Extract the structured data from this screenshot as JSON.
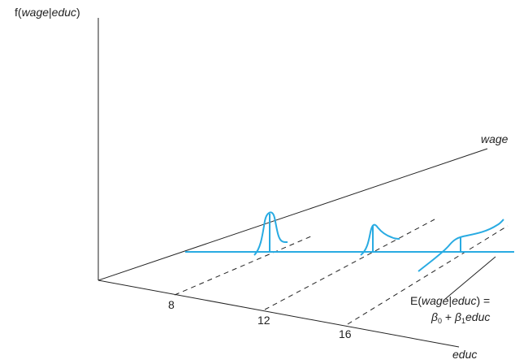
{
  "labels": {
    "y_axis_fn": "f(",
    "y_axis_arg": "wage",
    "y_axis_sep": "|",
    "y_axis_cond": "educ",
    "y_axis_close": ")",
    "wage_axis": "wage",
    "educ_axis": "educ",
    "tick_8": "8",
    "tick_12": "12",
    "tick_16": "16",
    "reg_E": "E(",
    "reg_wage": "wage",
    "reg_bar": "|",
    "reg_educ": "educ",
    "reg_close_eq": ") =",
    "reg_beta0": "β",
    "reg_sub0": "0",
    "reg_plus": " + ",
    "reg_beta1": "β",
    "reg_sub1": "1",
    "reg_educ2": "educ"
  },
  "colors": {
    "axis": "#222222",
    "curve": "#29abe2"
  }
}
